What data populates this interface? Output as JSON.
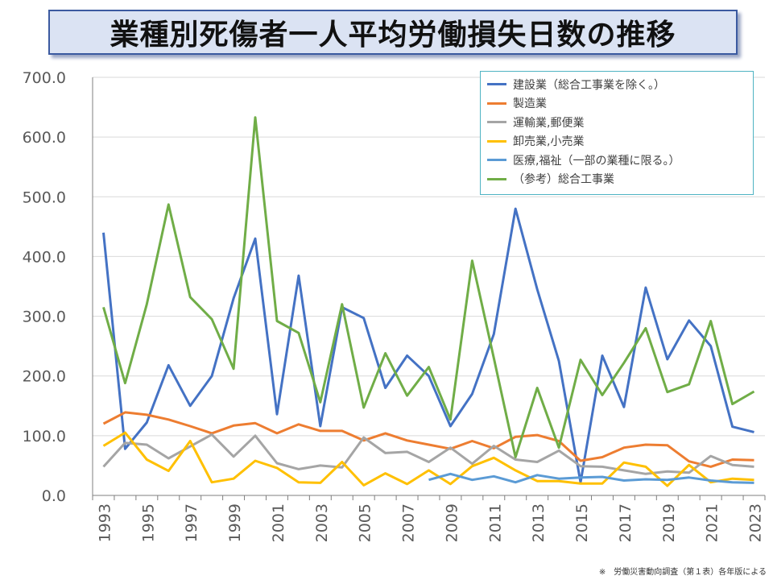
{
  "title": "業種別死傷者一人平均労働損失日数の推移",
  "source_note": "※　労働災害動向調査（第１表）各年版による",
  "chart_data": {
    "type": "line",
    "title": "業種別死傷者一人平均労働損失日数の推移",
    "xlabel": "",
    "ylabel": "",
    "ylim": [
      0,
      700
    ],
    "yticks": [
      0,
      100,
      200,
      300,
      400,
      500,
      600,
      700
    ],
    "ytick_labels": [
      "0.0",
      "100.0",
      "200.0",
      "300.0",
      "400.0",
      "500.0",
      "600.0",
      "700.0"
    ],
    "x": [
      1993,
      1994,
      1995,
      1996,
      1997,
      1998,
      1999,
      2000,
      2001,
      2002,
      2003,
      2004,
      2005,
      2006,
      2007,
      2008,
      2009,
      2010,
      2011,
      2012,
      2013,
      2014,
      2015,
      2016,
      2017,
      2018,
      2019,
      2020,
      2021,
      2022,
      2023
    ],
    "xtick_labels": [
      "1993",
      "1995",
      "1997",
      "1999",
      "2001",
      "2003",
      "2005",
      "2007",
      "2009",
      "2011",
      "2013",
      "2015",
      "2017",
      "2019",
      "2021",
      "2023"
    ],
    "legend_position": "top-right",
    "series": [
      {
        "name": "建設業（総合工事業を除く。）",
        "color": "#4472c4",
        "values": [
          440,
          78,
          122,
          218,
          150,
          200,
          330,
          430,
          136,
          368,
          116,
          315,
          297,
          180,
          234,
          200,
          116,
          170,
          270,
          480,
          345,
          225,
          22,
          234,
          148,
          348,
          228,
          293,
          250,
          115,
          106
        ]
      },
      {
        "name": "製造業",
        "color": "#ed7d31",
        "values": [
          120,
          139,
          135,
          127,
          116,
          104,
          117,
          121,
          104,
          119,
          108,
          108,
          92,
          104,
          92,
          85,
          78,
          91,
          79,
          98,
          101,
          91,
          58,
          64,
          80,
          85,
          84,
          57,
          48,
          60,
          59
        ]
      },
      {
        "name": "運輸業,郵便業",
        "color": "#a5a5a5",
        "values": [
          48,
          88,
          85,
          62,
          82,
          102,
          65,
          100,
          54,
          44,
          50,
          47,
          97,
          71,
          73,
          56,
          80,
          53,
          83,
          60,
          56,
          75,
          49,
          48,
          42,
          36,
          40,
          38,
          66,
          51,
          48
        ]
      },
      {
        "name": "卸売業,小売業",
        "color": "#ffc000",
        "values": [
          83,
          105,
          60,
          41,
          91,
          22,
          28,
          58,
          46,
          22,
          21,
          56,
          17,
          37,
          19,
          42,
          19,
          49,
          63,
          42,
          24,
          24,
          20,
          20,
          55,
          48,
          16,
          51,
          22,
          28,
          26
        ]
      },
      {
        "name": "医療,福祉（一部の業種に限る。）",
        "color": "#5b9bd5",
        "values": [
          null,
          null,
          null,
          null,
          null,
          null,
          null,
          null,
          null,
          null,
          null,
          null,
          null,
          null,
          null,
          26,
          36,
          26,
          32,
          22,
          34,
          28,
          30,
          31,
          25,
          27,
          26,
          30,
          25,
          22,
          21
        ]
      },
      {
        "name": "（参考）総合工事業",
        "color": "#70ad47",
        "values": [
          315,
          188,
          320,
          487,
          332,
          295,
          212,
          633,
          292,
          272,
          156,
          320,
          147,
          238,
          167,
          215,
          127,
          393,
          230,
          64,
          180,
          80,
          227,
          168,
          222,
          280,
          173,
          186,
          292,
          153,
          174
        ]
      }
    ]
  }
}
